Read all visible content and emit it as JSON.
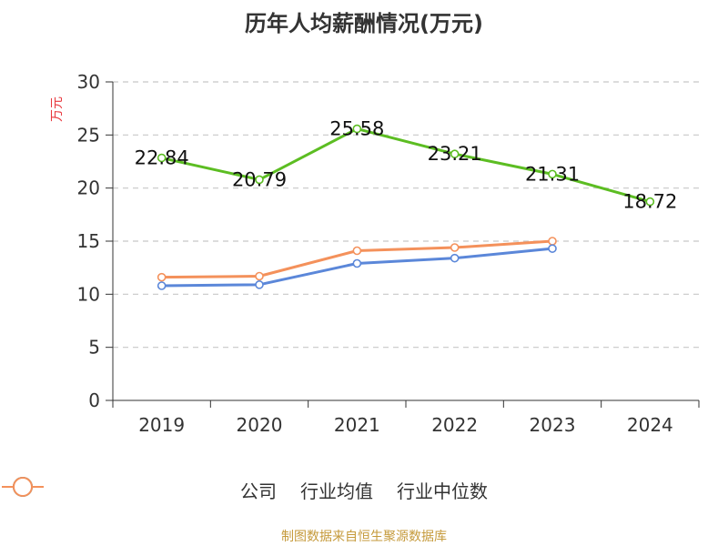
{
  "chart_data": {
    "type": "line",
    "title": "历年人均薪酬情况(万元)",
    "ylabel": "万元",
    "xlabel": "",
    "categories": [
      "2019",
      "2020",
      "2021",
      "2022",
      "2023",
      "2024"
    ],
    "ylim": [
      0,
      30
    ],
    "yticks": [
      0,
      5,
      10,
      15,
      20,
      25,
      30
    ],
    "grid": true,
    "legend_position": "bottom",
    "series": [
      {
        "name": "公司",
        "color": "#5cbd22",
        "values": [
          22.84,
          20.79,
          25.58,
          23.21,
          21.31,
          18.72
        ],
        "show_labels": true,
        "labels": [
          "22.84",
          "20.79",
          "25.58",
          "23.21",
          "21.31",
          "18.72"
        ]
      },
      {
        "name": "行业均值",
        "color": "#5b87d9",
        "values": [
          10.8,
          10.9,
          12.9,
          13.4,
          14.3,
          null
        ],
        "show_labels": false
      },
      {
        "name": "行业中位数",
        "color": "#f4915b",
        "values": [
          11.6,
          11.7,
          14.1,
          14.4,
          15.0,
          null
        ],
        "show_labels": false
      }
    ]
  },
  "footer": "制图数据来自恒生聚源数据库"
}
